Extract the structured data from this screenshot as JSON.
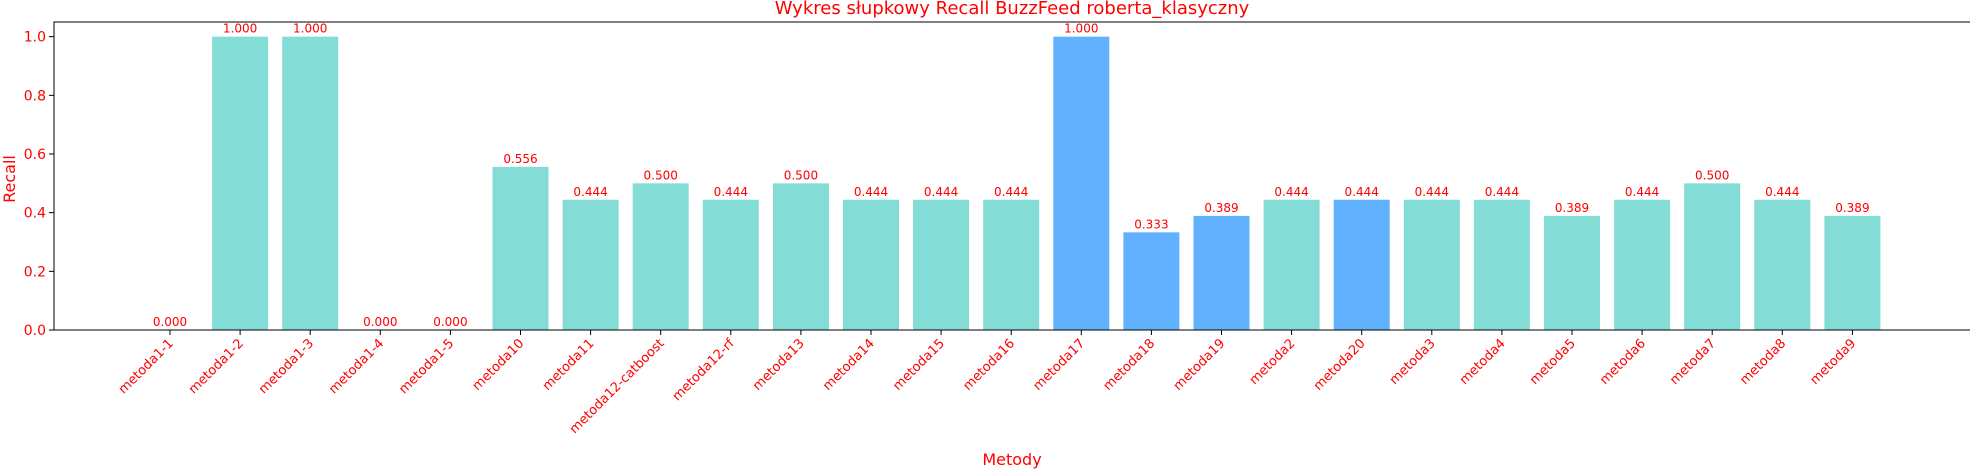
{
  "chart_data": {
    "type": "bar",
    "title": "Wykres słupkowy Recall BuzzFeed roberta_klasyczny",
    "xlabel": "Metody",
    "ylabel": "Recall",
    "ylim": [
      0,
      1.05
    ],
    "yticks": [
      "0.0",
      "0.2",
      "0.4",
      "0.6",
      "0.8",
      "1.0"
    ],
    "grid": false,
    "legend": "none",
    "categories": [
      "metoda1-1",
      "metoda1-2",
      "metoda1-3",
      "metoda1-4",
      "metoda1-5",
      "metoda10",
      "metoda11",
      "metoda12-catboost",
      "metoda12-rf",
      "metoda13",
      "metoda14",
      "metoda15",
      "metoda16",
      "metoda17",
      "metoda18",
      "metoda19",
      "metoda2",
      "metoda20",
      "metoda3",
      "metoda4",
      "metoda5",
      "metoda6",
      "metoda7",
      "metoda8",
      "metoda9"
    ],
    "values": [
      0.0,
      1.0,
      1.0,
      0.0,
      0.0,
      0.556,
      0.444,
      0.5,
      0.444,
      0.5,
      0.444,
      0.444,
      0.444,
      1.0,
      0.333,
      0.389,
      0.444,
      0.444,
      0.444,
      0.444,
      0.389,
      0.444,
      0.5,
      0.444,
      0.389
    ],
    "value_labels": [
      "0.000",
      "1.000",
      "1.000",
      "0.000",
      "0.000",
      "0.556",
      "0.444",
      "0.500",
      "0.444",
      "0.500",
      "0.444",
      "0.444",
      "0.444",
      "1.000",
      "0.333",
      "0.389",
      "0.444",
      "0.444",
      "0.444",
      "0.444",
      "0.389",
      "0.444",
      "0.500",
      "0.444",
      "0.389"
    ],
    "bar_colors": [
      "#84dcd6",
      "#84dcd6",
      "#84dcd6",
      "#84dcd6",
      "#84dcd6",
      "#84dcd6",
      "#84dcd6",
      "#84dcd6",
      "#84dcd6",
      "#84dcd6",
      "#84dcd6",
      "#84dcd6",
      "#84dcd6",
      "#62b1ff",
      "#62b1ff",
      "#62b1ff",
      "#84dcd6",
      "#62b1ff",
      "#84dcd6",
      "#84dcd6",
      "#84dcd6",
      "#84dcd6",
      "#84dcd6",
      "#84dcd6",
      "#84dcd6"
    ],
    "text_color": "#ff0000",
    "axis_color": "#000000"
  }
}
